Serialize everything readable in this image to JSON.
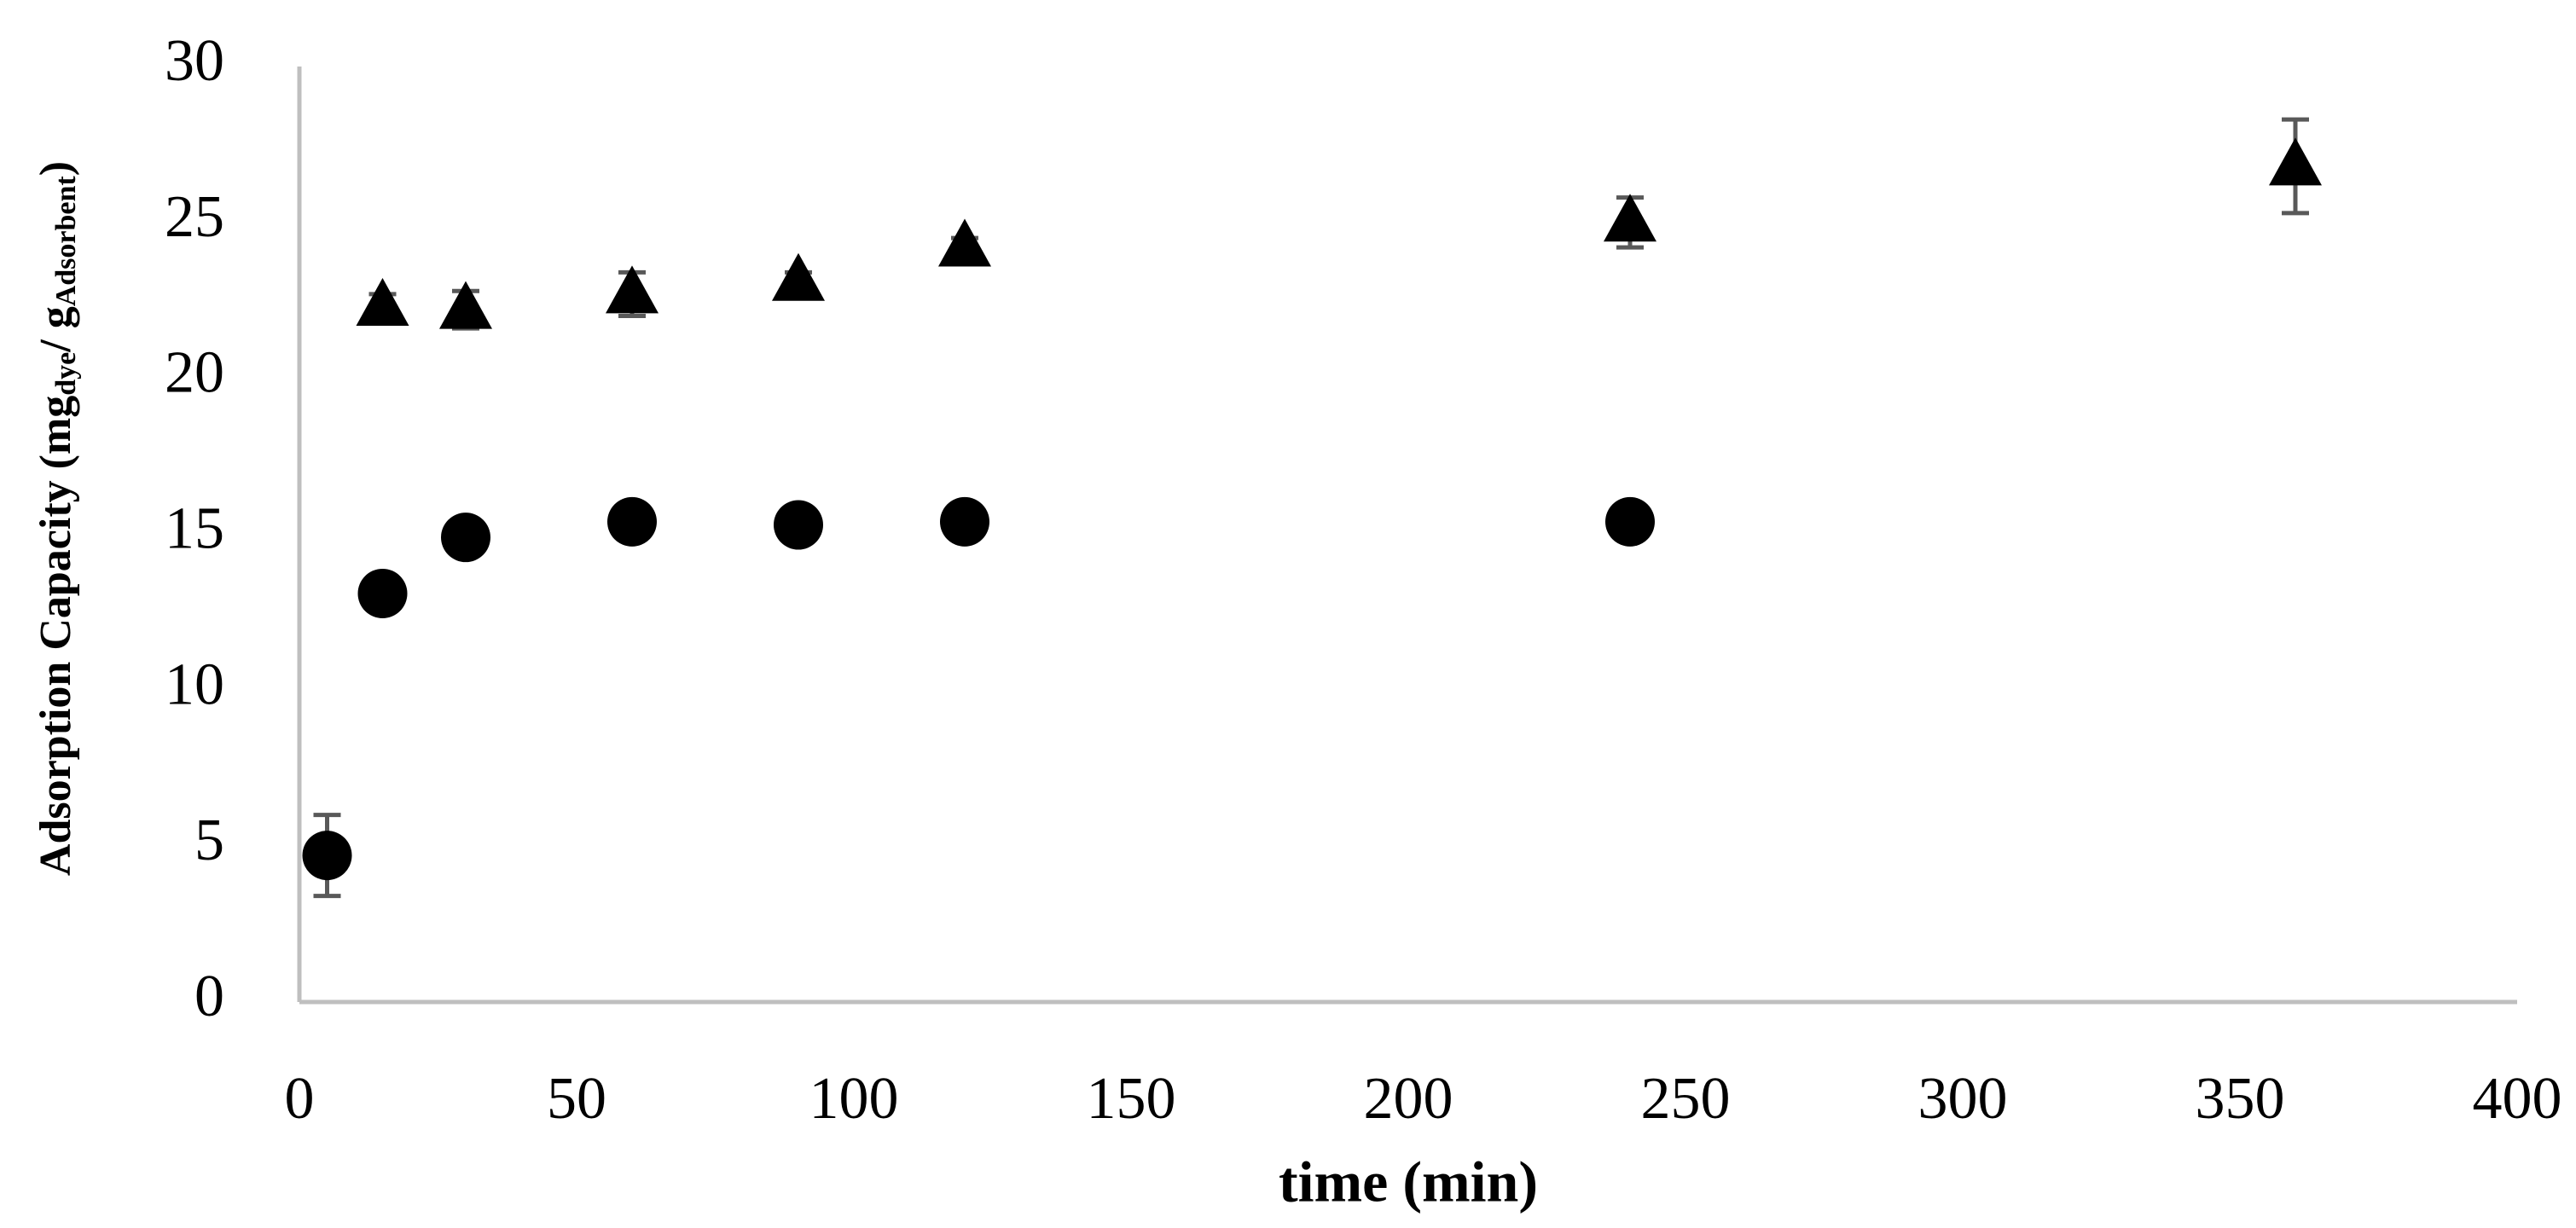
{
  "chart_data": {
    "type": "scatter",
    "xlabel": "time (min)",
    "ylabel_parts": [
      "Adsorption Capacity (mg",
      "dye",
      "/ g",
      "Adsorbent",
      ")"
    ],
    "xlim": [
      0,
      400
    ],
    "xticks": [
      0,
      50,
      100,
      150,
      200,
      250,
      300,
      350,
      400
    ],
    "ylim": [
      0,
      30
    ],
    "yticks": [
      0,
      5,
      10,
      15,
      20,
      25,
      30
    ],
    "error_color": "#595959",
    "series": [
      {
        "marker": "circle",
        "color": "#000000",
        "x": [
          5,
          15,
          30,
          60,
          90,
          120,
          240
        ],
        "values": [
          4.7,
          13.1,
          14.9,
          15.4,
          15.3,
          15.4,
          15.4
        ],
        "errors": [
          1.3,
          0,
          0,
          0,
          0,
          0,
          0
        ]
      },
      {
        "marker": "triangle",
        "color": "#000000",
        "x": [
          15,
          30,
          60,
          90,
          120,
          240,
          360
        ],
        "values": [
          22.3,
          22.2,
          22.7,
          23.1,
          24.2,
          25.0,
          26.8
        ],
        "errors": [
          0.4,
          0.6,
          0.7,
          0.3,
          0.3,
          0.8,
          1.5
        ]
      }
    ]
  }
}
